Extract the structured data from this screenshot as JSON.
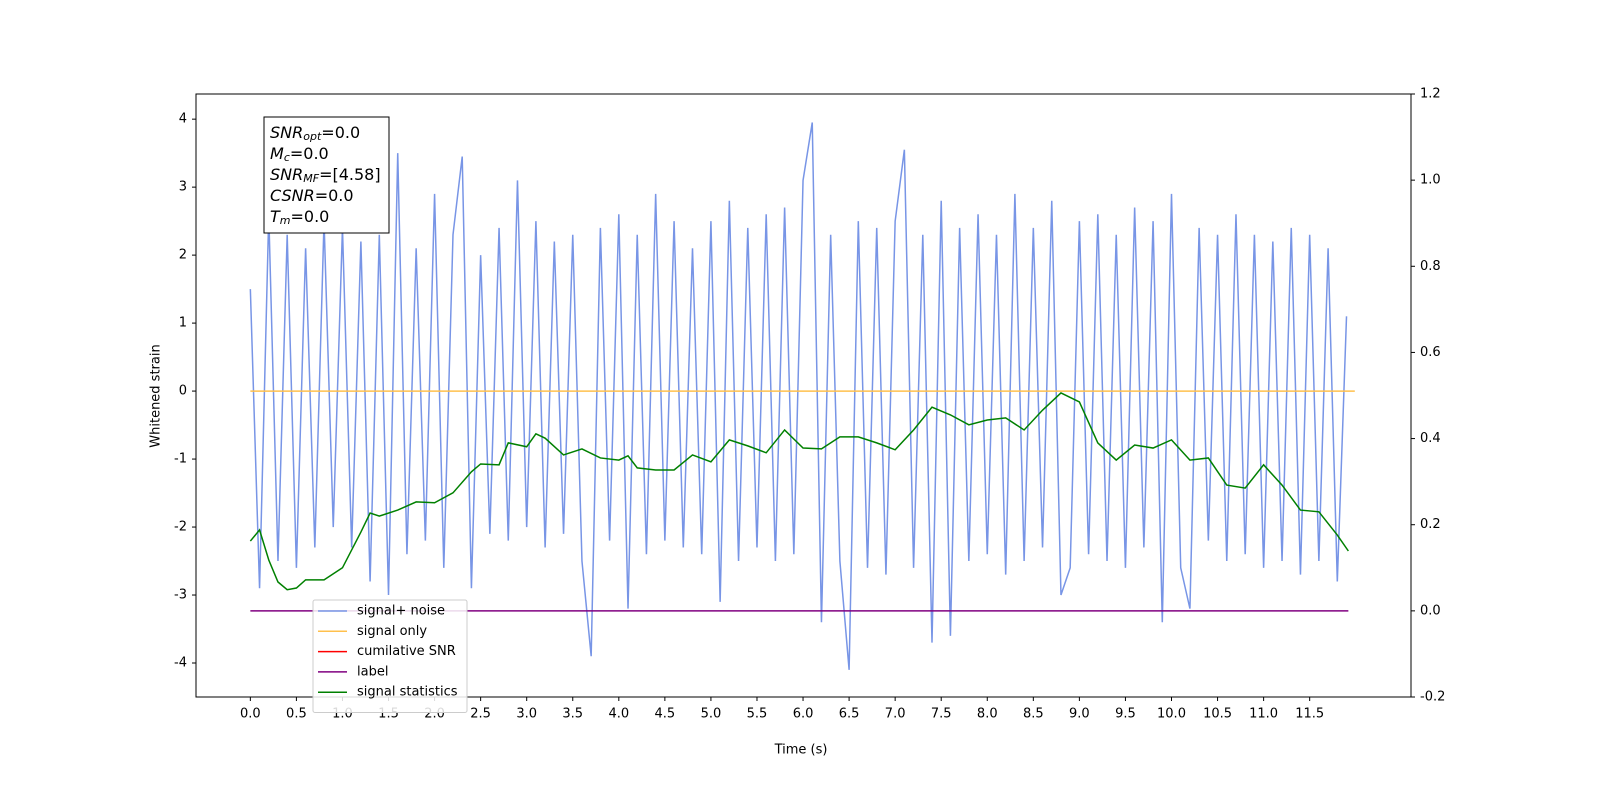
{
  "chart_data": {
    "type": "line",
    "xlabel": "Time (s)",
    "ylabel": "Whitened strain",
    "xlim": [
      -0.59,
      12.6
    ],
    "ylim": [
      -4.5,
      4.37
    ],
    "y2lim": [
      -0.2,
      1.2
    ],
    "xticks": [
      {
        "value": 0,
        "label": "0.0"
      },
      0.5,
      {
        "value": 1,
        "label": "1.0"
      },
      1.5,
      {
        "value": 2,
        "label": "2.0"
      },
      2.5,
      {
        "value": 3,
        "label": "3.0"
      },
      3.5,
      {
        "value": 4,
        "label": "4.0"
      },
      4.5,
      {
        "value": 5,
        "label": "5.0"
      },
      5.5,
      {
        "value": 6,
        "label": "6.0"
      },
      6.5,
      {
        "value": 7,
        "label": "7.0"
      },
      7.5,
      {
        "value": 8,
        "label": "8.0"
      },
      8.5,
      {
        "value": 9,
        "label": "9.0"
      },
      9.5,
      {
        "value": 10,
        "label": "10.0"
      },
      10.5,
      {
        "value": 11,
        "label": "11.0"
      },
      11.5
    ],
    "yticks": [
      -4,
      -3,
      -2,
      -1,
      0,
      1,
      2,
      3,
      4
    ],
    "y2ticks": [
      -0.2,
      {
        "value": 0,
        "label": "0.0"
      },
      0.2,
      0.4,
      0.6,
      0.8,
      {
        "value": 1,
        "label": "1.0"
      },
      1.2
    ],
    "annotations": [
      {
        "main": "SNR",
        "sub": "opt",
        "rest": "=0.0"
      },
      {
        "main": "M",
        "sub": "c",
        "rest": "=0.0"
      },
      {
        "main": "SNR",
        "sub": "MF",
        "rest": "=[4.58]"
      },
      {
        "main": "CSNR",
        "sub": "",
        "rest": "=0.0"
      },
      {
        "main": "T",
        "sub": "m",
        "rest": "=0.0"
      }
    ],
    "series": [
      {
        "name": "signal+ noise",
        "color": "#7895e6",
        "axis": "y",
        "x": [
          0,
          0.1,
          0.2,
          0.3,
          0.4,
          0.5,
          0.6,
          0.7,
          0.8,
          0.9,
          1,
          1.1,
          1.2,
          1.3,
          1.4,
          1.5,
          1.6,
          1.7,
          1.8,
          1.9,
          2,
          2.1,
          2.2,
          2.3,
          2.4,
          2.5,
          2.6,
          2.7,
          2.8,
          2.9,
          3,
          3.1,
          3.2,
          3.3,
          3.4,
          3.5,
          3.6,
          3.7,
          3.8,
          3.9,
          4,
          4.1,
          4.2,
          4.3,
          4.4,
          4.5,
          4.6,
          4.7,
          4.8,
          4.9,
          5,
          5.1,
          5.2,
          5.3,
          5.4,
          5.5,
          5.6,
          5.7,
          5.8,
          5.9,
          6,
          6.1,
          6.2,
          6.3,
          6.4,
          6.5,
          6.6,
          6.7,
          6.8,
          6.9,
          7,
          7.1,
          7.2,
          7.3,
          7.4,
          7.5,
          7.6,
          7.7,
          7.8,
          7.9,
          8,
          8.1,
          8.2,
          8.3,
          8.4,
          8.5,
          8.6,
          8.7,
          8.8,
          8.9,
          9,
          9.1,
          9.2,
          9.3,
          9.4,
          9.5,
          9.6,
          9.7,
          9.8,
          9.9,
          10,
          10.1,
          10.2,
          10.3,
          10.4,
          10.5,
          10.6,
          10.7,
          10.8,
          10.9,
          11,
          11.1,
          11.2,
          11.3,
          11.4,
          11.5,
          11.6,
          11.7,
          11.8,
          11.9
        ],
        "values": [
          1.5,
          -2.9,
          2.6,
          -2.5,
          2.3,
          -2.6,
          2.1,
          -2.3,
          2.5,
          -2.0,
          2.4,
          -2.3,
          2.2,
          -2.8,
          2.3,
          -3.0,
          3.5,
          -2.4,
          2.1,
          -2.2,
          2.9,
          -2.6,
          2.3,
          3.45,
          -2.9,
          2.0,
          -2.1,
          2.4,
          -2.2,
          3.1,
          -2.0,
          2.5,
          -2.3,
          2.2,
          -2.1,
          2.3,
          -2.5,
          -3.9,
          2.4,
          -2.2,
          2.6,
          -3.2,
          2.3,
          -2.4,
          2.9,
          -2.2,
          2.5,
          -2.3,
          2.1,
          -2.4,
          2.5,
          -3.1,
          2.8,
          -2.5,
          2.4,
          -2.3,
          2.6,
          -2.5,
          2.7,
          -2.4,
          3.1,
          3.95,
          -3.4,
          2.3,
          -2.5,
          -4.1,
          2.5,
          -2.6,
          2.4,
          -2.7,
          2.5,
          3.55,
          -2.6,
          2.3,
          -3.7,
          2.8,
          -3.6,
          2.4,
          -2.5,
          2.6,
          -2.4,
          2.3,
          -2.7,
          2.9,
          -2.5,
          2.4,
          -2.3,
          2.8,
          -3.0,
          -2.6,
          2.5,
          -2.4,
          2.6,
          -2.5,
          2.3,
          -2.6,
          2.7,
          -2.3,
          2.5,
          -3.4,
          2.9,
          -2.6,
          -3.2,
          2.4,
          -2.2,
          2.3,
          -2.5,
          2.6,
          -2.4,
          2.3,
          -2.6,
          2.2,
          -2.5,
          2.4,
          -2.7,
          2.3,
          -2.5,
          2.1,
          -2.8,
          1.1
        ]
      },
      {
        "name": "signal only",
        "color": "#ffc04d",
        "axis": "y",
        "x": [
          0,
          11.99
        ],
        "values": [
          0,
          0
        ]
      },
      {
        "name": "cumilative SNR",
        "color": "#ff0000",
        "axis": "y2",
        "x": [],
        "values": []
      },
      {
        "name": "label",
        "color": "#800080",
        "axis": "y2",
        "x": [
          0,
          11.92
        ],
        "values": [
          0,
          0
        ]
      },
      {
        "name": "signal statistics",
        "color": "#008000",
        "axis": "y2",
        "x": [
          0,
          0.1,
          0.2,
          0.3,
          0.4,
          0.5,
          0.6,
          0.8,
          1.0,
          1.2,
          1.3,
          1.4,
          1.6,
          1.8,
          2.0,
          2.2,
          2.4,
          2.5,
          2.7,
          2.8,
          3.0,
          3.1,
          3.2,
          3.4,
          3.6,
          3.8,
          4.0,
          4.1,
          4.2,
          4.4,
          4.6,
          4.8,
          5.0,
          5.2,
          5.4,
          5.6,
          5.8,
          6.0,
          6.2,
          6.4,
          6.6,
          6.8,
          7.0,
          7.2,
          7.4,
          7.6,
          7.8,
          8.0,
          8.2,
          8.4,
          8.6,
          8.8,
          9.0,
          9.2,
          9.4,
          9.6,
          9.8,
          10.0,
          10.2,
          10.4,
          10.6,
          10.8,
          11.0,
          11.2,
          11.4,
          11.6,
          11.8,
          11.92
        ],
        "values": [
          0.162,
          0.188,
          0.118,
          0.067,
          0.049,
          0.053,
          0.072,
          0.072,
          0.1,
          0.183,
          0.227,
          0.22,
          0.234,
          0.253,
          0.251,
          0.274,
          0.323,
          0.341,
          0.339,
          0.39,
          0.381,
          0.411,
          0.401,
          0.362,
          0.376,
          0.355,
          0.35,
          0.36,
          0.332,
          0.327,
          0.327,
          0.362,
          0.346,
          0.397,
          0.383,
          0.367,
          0.42,
          0.378,
          0.376,
          0.404,
          0.404,
          0.39,
          0.374,
          0.42,
          0.473,
          0.455,
          0.432,
          0.443,
          0.448,
          0.42,
          0.466,
          0.506,
          0.485,
          0.39,
          0.35,
          0.385,
          0.378,
          0.397,
          0.35,
          0.355,
          0.292,
          0.285,
          0.339,
          0.292,
          0.234,
          0.23,
          0.176,
          0.139
        ]
      }
    ]
  }
}
